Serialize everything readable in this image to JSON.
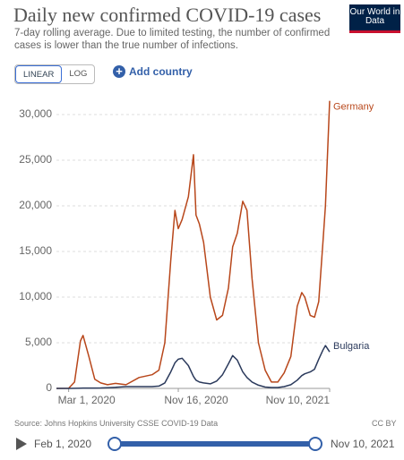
{
  "header": {
    "title": "Daily new confirmed COVID-19 cases",
    "subtitle": "7-day rolling average. Due to limited testing, the number of confirmed cases is lower than the true number of infections.",
    "logo": "Our World in Data"
  },
  "controls": {
    "scale_buttons": [
      "LINEAR",
      "LOG"
    ],
    "add_country": "Add country"
  },
  "chart_data": {
    "type": "line",
    "x": [
      "2020-02-01",
      "2020-03-01",
      "2020-03-15",
      "2020-03-29",
      "2020-04-04",
      "2020-04-18",
      "2020-05-02",
      "2020-05-16",
      "2020-06-01",
      "2020-06-20",
      "2020-07-15",
      "2020-08-15",
      "2020-09-15",
      "2020-10-01",
      "2020-10-15",
      "2020-10-29",
      "2020-11-08",
      "2020-11-16",
      "2020-11-25",
      "2020-12-10",
      "2020-12-22",
      "2020-12-28",
      "2021-01-05",
      "2021-01-15",
      "2021-01-31",
      "2021-02-15",
      "2021-03-01",
      "2021-03-15",
      "2021-03-25",
      "2021-04-05",
      "2021-04-18",
      "2021-04-28",
      "2021-05-10",
      "2021-05-25",
      "2021-06-10",
      "2021-06-25",
      "2021-07-10",
      "2021-07-25",
      "2021-08-10",
      "2021-08-25",
      "2021-09-05",
      "2021-09-12",
      "2021-09-25",
      "2021-10-05",
      "2021-10-15",
      "2021-10-25",
      "2021-10-31",
      "2021-11-10"
    ],
    "series": [
      {
        "name": "Germany",
        "color": "#b8471b",
        "values": [
          0,
          10,
          700,
          5200,
          5800,
          3500,
          1000,
          600,
          400,
          550,
          400,
          1200,
          1500,
          2000,
          5000,
          14000,
          19500,
          17500,
          18500,
          21000,
          25600,
          19000,
          18000,
          16000,
          10000,
          7500,
          8000,
          11000,
          15500,
          17000,
          20500,
          19500,
          12000,
          5000,
          2000,
          700,
          700,
          1700,
          3500,
          9000,
          10500,
          10000,
          8000,
          7800,
          9500,
          16000,
          20000,
          31500
        ]
      },
      {
        "name": "Bulgaria",
        "color": "#2b3a5c",
        "values": [
          0,
          0,
          10,
          30,
          40,
          40,
          40,
          50,
          80,
          120,
          200,
          200,
          200,
          250,
          600,
          1800,
          2800,
          3200,
          3300,
          2500,
          1300,
          900,
          700,
          600,
          500,
          800,
          1500,
          2700,
          3600,
          3100,
          1800,
          1200,
          700,
          350,
          150,
          100,
          100,
          200,
          400,
          900,
          1400,
          1600,
          1800,
          2100,
          3200,
          4200,
          4700,
          4000
        ]
      }
    ],
    "xlim": [
      "2020-02-01",
      "2021-11-10"
    ],
    "xticks": [
      {
        "value": "2020-03-01",
        "label": "Mar 1, 2020"
      },
      {
        "value": "2020-11-16",
        "label": "Nov 16, 2020"
      },
      {
        "value": "2021-11-10",
        "label": "Nov 10, 2021"
      }
    ],
    "ylim": [
      0,
      32000
    ],
    "yticks": [
      0,
      {
        "value": 5000,
        "label": "5,000"
      },
      {
        "value": 10000,
        "label": "10,000"
      },
      {
        "value": 15000,
        "label": "15,000"
      },
      {
        "value": 20000,
        "label": "20,000"
      },
      {
        "value": 25000,
        "label": "25,000"
      },
      {
        "value": 30000,
        "label": "30,000"
      }
    ],
    "grid": true
  },
  "footer": {
    "source": "Source: Johns Hopkins University CSSE COVID-19 Data",
    "license": "CC BY",
    "timeline": {
      "start": "Feb 1, 2020",
      "end": "Nov 10, 2021"
    }
  }
}
